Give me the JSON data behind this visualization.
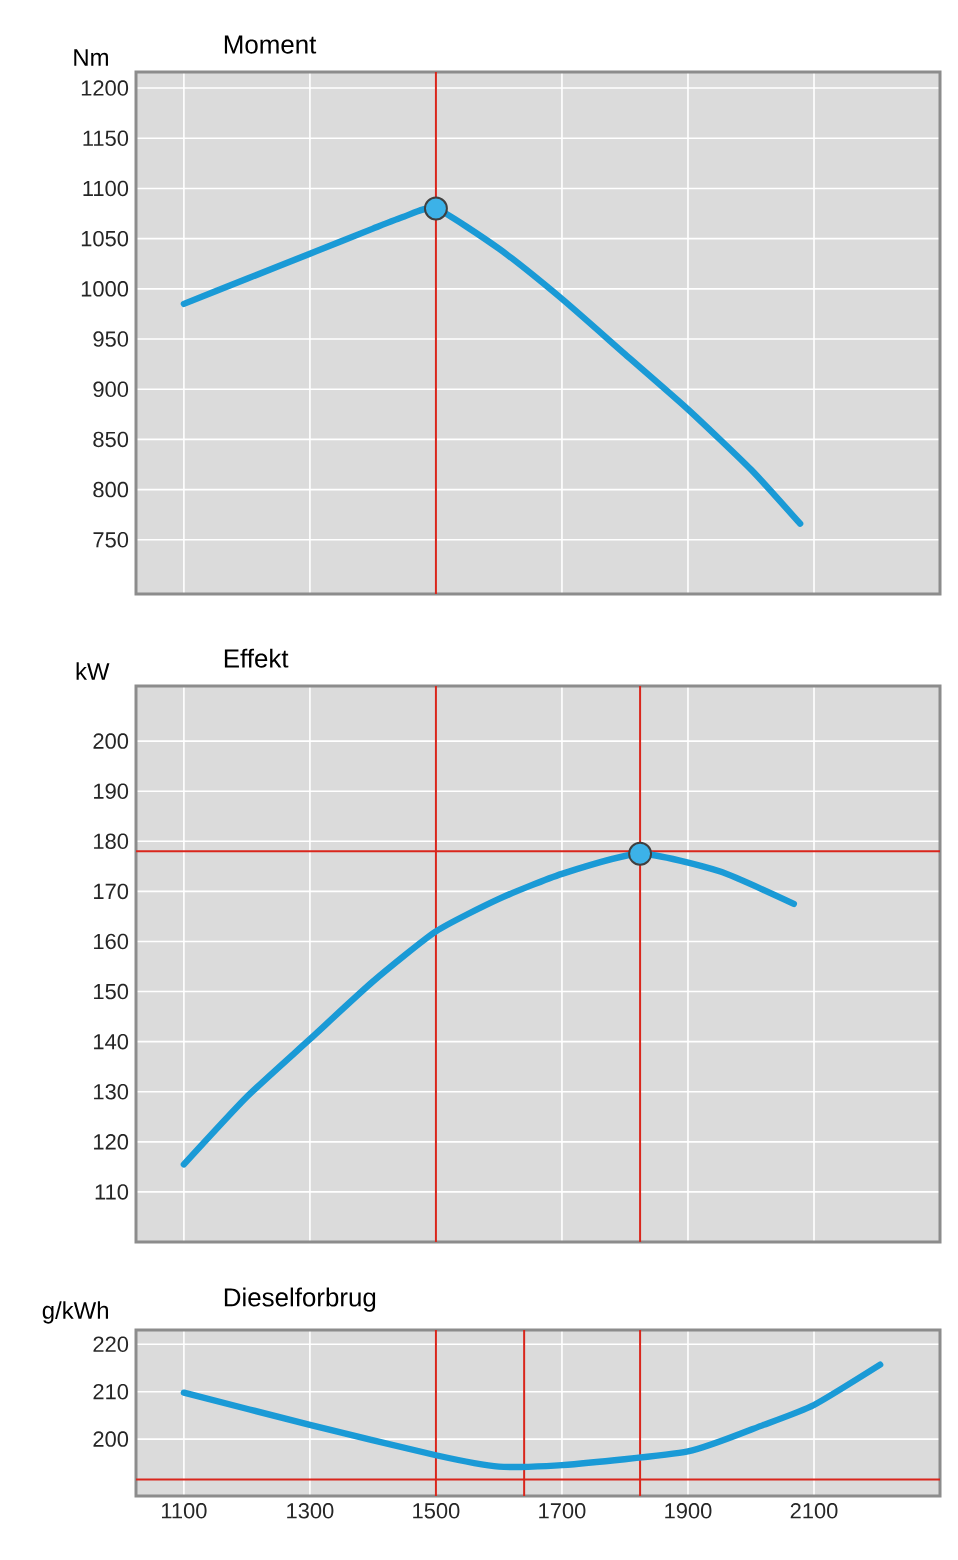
{
  "chart_data": [
    {
      "type": "line",
      "title": "Moment",
      "ylabel": "Nm",
      "xlim": [
        1024,
        2300
      ],
      "ylim": [
        696,
        1216
      ],
      "xticks": [
        1100,
        1300,
        1500,
        1700,
        1900,
        2100
      ],
      "yticks": [
        750,
        800,
        850,
        900,
        950,
        1000,
        1050,
        1100,
        1150,
        1200
      ],
      "grid": true,
      "tick_labels": "y",
      "series": [
        {
          "color": "#1a9ad6",
          "x": [
            1100,
            1200,
            1300,
            1400,
            1450,
            1500,
            1600,
            1700,
            1800,
            1900,
            2000,
            2078
          ],
          "values": [
            985,
            1010,
            1035,
            1060,
            1072,
            1080,
            1040,
            990,
            935,
            880,
            820,
            766
          ]
        },
        {
          "type": "scatter",
          "marker": "circle",
          "color": "#3cb2e8",
          "x": [
            1500
          ],
          "values": [
            1080
          ]
        }
      ],
      "ref_lines": [
        {
          "axis": "x",
          "value": 1500,
          "color": "#d9261c"
        }
      ]
    },
    {
      "type": "line",
      "title": "Effekt",
      "ylabel": "kW",
      "xlim": [
        1024,
        2300
      ],
      "ylim": [
        100,
        211
      ],
      "xticks": [
        1100,
        1300,
        1500,
        1700,
        1900,
        2100
      ],
      "yticks": [
        110,
        120,
        130,
        140,
        150,
        160,
        170,
        180,
        190,
        200
      ],
      "grid": true,
      "tick_labels": "y",
      "series": [
        {
          "color": "#1a9ad6",
          "x": [
            1100,
            1200,
            1300,
            1400,
            1500,
            1600,
            1700,
            1824,
            1950,
            2068
          ],
          "values": [
            115.5,
            129,
            140.5,
            152,
            162,
            168.5,
            173.5,
            177.5,
            174,
            167.5
          ]
        },
        {
          "type": "scatter",
          "marker": "circle",
          "color": "#3cb2e8",
          "x": [
            1824
          ],
          "values": [
            177.5
          ]
        }
      ],
      "ref_lines": [
        {
          "axis": "x",
          "value": 1500,
          "color": "#d9261c"
        },
        {
          "axis": "x",
          "value": 1824,
          "color": "#d9261c"
        },
        {
          "axis": "y",
          "value": 178,
          "color": "#d9261c"
        }
      ]
    },
    {
      "type": "line",
      "title": "Dieselforbrug",
      "ylabel": "g/kWh",
      "xlim": [
        1024,
        2300
      ],
      "ylim": [
        188,
        223
      ],
      "xticks": [
        1100,
        1300,
        1500,
        1700,
        1900,
        2100
      ],
      "yticks": [
        200,
        210,
        220
      ],
      "grid": true,
      "series": [
        {
          "color": "#1a9ad6",
          "x": [
            1100,
            1300,
            1500,
            1600,
            1700,
            1900,
            2020,
            2100,
            2205
          ],
          "values": [
            209.8,
            203,
            196.6,
            194.2,
            194.5,
            197.4,
            203,
            207.2,
            215.7
          ]
        }
      ],
      "ref_lines": [
        {
          "axis": "x",
          "value": 1500,
          "color": "#d9261c"
        },
        {
          "axis": "x",
          "value": 1640,
          "color": "#d9261c"
        },
        {
          "axis": "x",
          "value": 1824,
          "color": "#d9261c"
        },
        {
          "axis": "y",
          "value": 191.5,
          "color": "#d9261c"
        }
      ]
    }
  ]
}
